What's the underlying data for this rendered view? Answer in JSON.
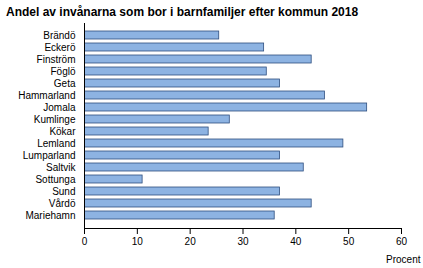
{
  "chart_data": {
    "type": "bar",
    "orientation": "horizontal",
    "title": "Andel av invånarna som bor i barnfamiljer efter kommun 2018",
    "x_label": "Procent",
    "categories": [
      "Brändö",
      "Eckerö",
      "Finström",
      "Föglö",
      "Geta",
      "Hammarland",
      "Jomala",
      "Kumlinge",
      "Kökar",
      "Lemland",
      "Lumparland",
      "Saltvik",
      "Sottunga",
      "Sund",
      "Vårdö",
      "Mariehamn"
    ],
    "values": [
      25.5,
      34,
      43,
      34.5,
      37,
      45.5,
      53.5,
      27.5,
      23.5,
      49,
      37,
      41.5,
      11,
      37,
      43,
      36
    ],
    "color": "#8db3e2",
    "xlim": [
      0,
      60
    ],
    "xticks": [
      0,
      10,
      20,
      30,
      40,
      50,
      60
    ],
    "grid": false
  }
}
